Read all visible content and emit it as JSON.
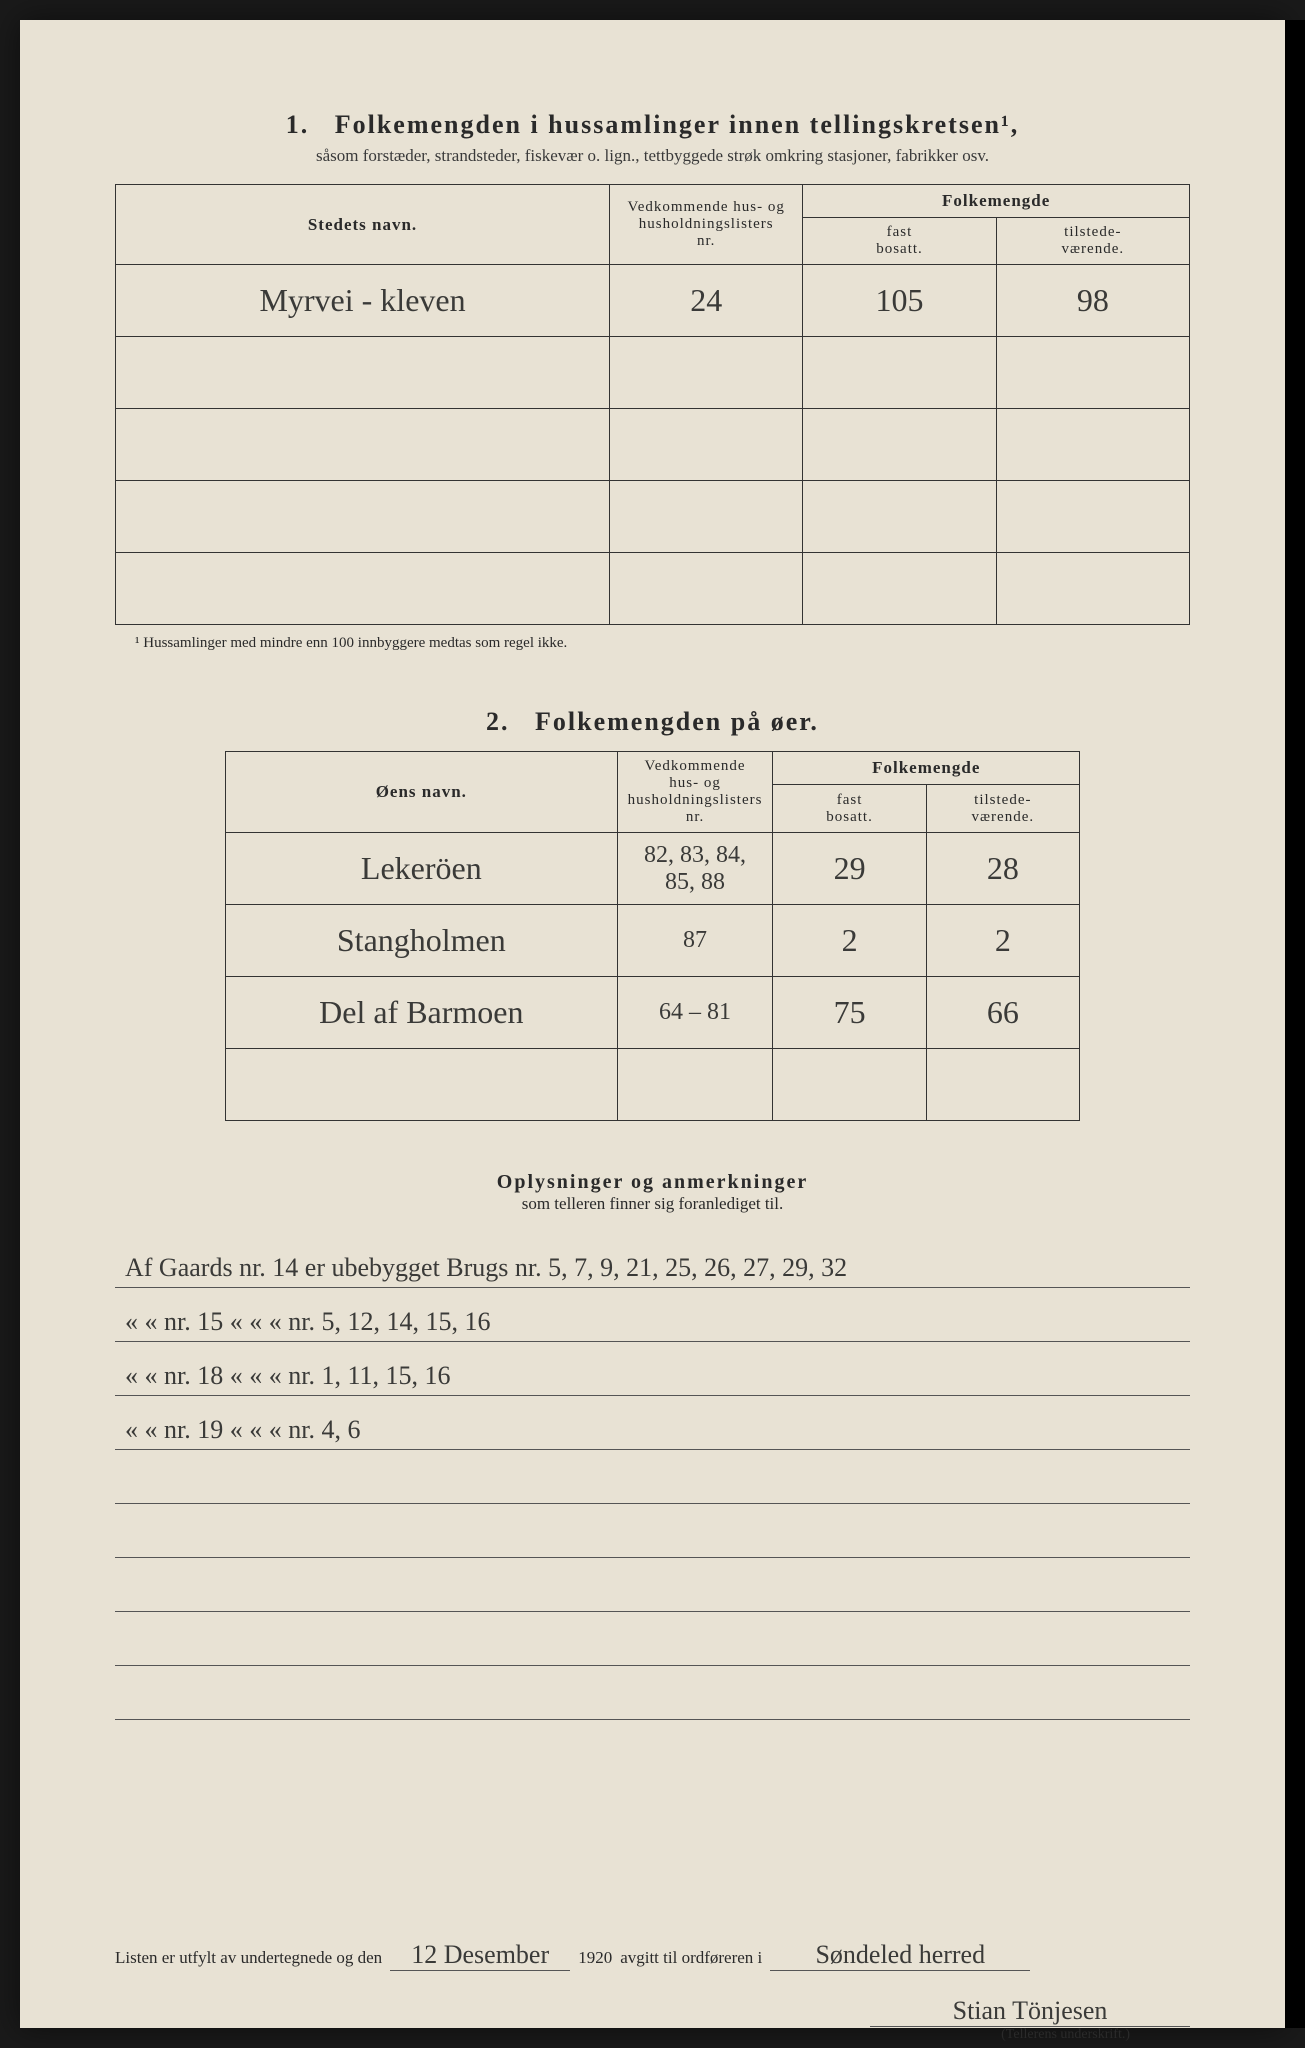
{
  "background_color": "#e8e2d4",
  "text_color": "#2a2a2a",
  "border_color": "#333333",
  "handwriting_color": "#3a3a38",
  "section1": {
    "number": "1.",
    "title": "Folkemengden i hussamlinger innen tellingskretsen¹,",
    "subtitle": "såsom forstæder, strandsteder, fiskevær o. lign., tettbyggede strøk omkring stasjoner, fabrikker osv.",
    "columns": {
      "name": "Stedets navn.",
      "nr_line1": "Vedkommende hus- og",
      "nr_line2": "husholdningslisters",
      "nr_line3": "nr.",
      "folkemengde": "Folkemengde",
      "fast_line1": "fast",
      "fast_line2": "bosatt.",
      "til_line1": "tilstede-",
      "til_line2": "værende."
    },
    "rows": [
      {
        "name": "Myrvei - kleven",
        "nr": "24",
        "fast": "105",
        "til": "98"
      },
      {
        "name": "",
        "nr": "",
        "fast": "",
        "til": ""
      },
      {
        "name": "",
        "nr": "",
        "fast": "",
        "til": ""
      },
      {
        "name": "",
        "nr": "",
        "fast": "",
        "til": ""
      },
      {
        "name": "",
        "nr": "",
        "fast": "",
        "til": ""
      }
    ],
    "footnote": "¹  Hussamlinger med mindre enn 100 innbyggere medtas som regel ikke."
  },
  "section2": {
    "number": "2.",
    "title": "Folkemengden på øer.",
    "columns": {
      "name": "Øens navn.",
      "nr_line1": "Vedkommende hus- og",
      "nr_line2": "husholdningslisters",
      "nr_line3": "nr.",
      "folkemengde": "Folkemengde",
      "fast_line1": "fast",
      "fast_line2": "bosatt.",
      "til_line1": "tilstede-",
      "til_line2": "værende."
    },
    "rows": [
      {
        "name": "Lekeröen",
        "nr": "82, 83, 84, 85, 88",
        "fast": "29",
        "til": "28"
      },
      {
        "name": "Stangholmen",
        "nr": "87",
        "fast": "2",
        "til": "2"
      },
      {
        "name": "Del af Barmoen",
        "nr": "64 – 81",
        "fast": "75",
        "til": "66"
      },
      {
        "name": "",
        "nr": "",
        "fast": "",
        "til": ""
      }
    ]
  },
  "notes": {
    "title": "Oplysninger og anmerkninger",
    "subtitle": "som telleren finner sig foranlediget til.",
    "lines": [
      "Af Gaards nr. 14 er ubebygget Brugs nr. 5, 7, 9, 21, 25, 26, 27, 29, 32",
      "«        «      nr. 15   «          «         «    nr. 5, 12, 14, 15, 16",
      "«        «      nr. 18   «          «         «    nr. 1, 11, 15, 16",
      "«        «      nr. 19   «          «         «    nr. 4, 6",
      "",
      "",
      "",
      "",
      ""
    ]
  },
  "signature": {
    "prefix": "Listen er utfylt av undertegnede og den",
    "date": "12 Desember",
    "year": "1920",
    "middle": "avgitt til ordføreren i",
    "place": "Søndeled herred",
    "counter_name": "Stian Tönjesen",
    "counter_label": "(Tellerens underskrift.)"
  }
}
